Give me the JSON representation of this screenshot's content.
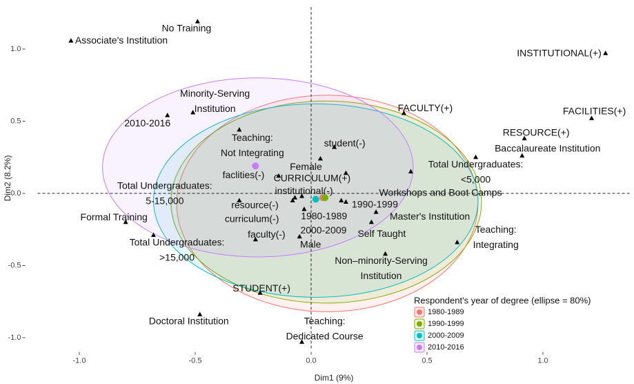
{
  "chart_data": {
    "type": "scatter",
    "xlabel": "Dim1 (9%)",
    "ylabel": "Dim2 (8.2%)",
    "xlim": [
      -1.18,
      1.38
    ],
    "ylim": [
      -1.08,
      1.29
    ],
    "xticks": [
      {
        "value": -1,
        "label": "-1.0"
      },
      {
        "value": -0.5,
        "label": "-0.5"
      },
      {
        "value": 0,
        "label": "0.0"
      },
      {
        "value": 0.5,
        "label": "0.5"
      },
      {
        "value": 1,
        "label": "1.0"
      }
    ],
    "yticks": [
      {
        "value": -1,
        "label": "-1.0"
      },
      {
        "value": -0.5,
        "label": "-0.5"
      },
      {
        "value": 0,
        "label": "0.0"
      },
      {
        "value": 0.5,
        "label": "0.5"
      },
      {
        "value": 1,
        "label": "1.0"
      }
    ],
    "legend_title": "Respondent's year of degree (ellipse = 80%)",
    "series": [
      {
        "name": "1980-1989",
        "color": "#f8766d",
        "x": [
          0.05
        ],
        "values": [
          -0.03
        ],
        "ellipse": {
          "cx": 0.07,
          "cy": -0.07,
          "rx": 0.65,
          "ry": 0.75
        }
      },
      {
        "name": "1990-1999",
        "color": "#7cae00",
        "x": [
          0.06
        ],
        "values": [
          -0.03
        ],
        "ellipse": {
          "cx": 0.065,
          "cy": -0.06,
          "rx": 0.67,
          "ry": 0.7
        }
      },
      {
        "name": "2000-2009",
        "color": "#00bfc4",
        "x": [
          0.02
        ],
        "values": [
          -0.04
        ],
        "ellipse": {
          "cx": 0.02,
          "cy": -0.05,
          "rx": 0.7,
          "ry": 0.67
        }
      },
      {
        "name": "2010-2016",
        "color": "#c77cff",
        "x": [
          -0.24
        ],
        "values": [
          0.19
        ],
        "ellipse": {
          "cx": -0.23,
          "cy": 0.18,
          "rx": 0.67,
          "ry": 0.62
        }
      }
    ],
    "points": [
      {
        "label": [
          "Associate's Institution"
        ],
        "x": -1.036,
        "y": 1.057
      },
      {
        "label": [
          "No Training"
        ],
        "x": -0.49,
        "y": 1.19
      },
      {
        "label": [
          "INSTITUTIONAL(+)"
        ],
        "x": 1.27,
        "y": 0.97
      },
      {
        "label": [
          "FACILITIES(+)"
        ],
        "x": 1.21,
        "y": 0.52
      },
      {
        "label": [
          "RESOURCE(+)"
        ],
        "x": 0.92,
        "y": 0.38
      },
      {
        "label": [
          "Baccalaureate Institution"
        ],
        "x": 0.91,
        "y": 0.26
      },
      {
        "label": [
          "FACULTY(+)"
        ],
        "x": 0.4,
        "y": 0.555
      },
      {
        "label": [
          "Total Undergraduates:",
          "<5,000"
        ],
        "x": 0.71,
        "y": 0.25
      },
      {
        "label": [
          "Workshops and Boot Camps"
        ],
        "x": 0.43,
        "y": 0.15
      },
      {
        "label": [
          "Teaching:",
          "Integrating"
        ],
        "x": 0.63,
        "y": -0.34
      },
      {
        "label": [
          "Master's Institution"
        ],
        "x": 0.28,
        "y": -0.13
      },
      {
        "label": [
          "Non–minority-Serving",
          "Institution"
        ],
        "x": 0.32,
        "y": -0.42
      },
      {
        "label": [
          "Self Taught"
        ],
        "x": 0.26,
        "y": -0.2
      },
      {
        "label": [
          "1990-1999"
        ],
        "x": 0.15,
        "y": -0.06
      },
      {
        "label": [
          "1980-1989"
        ],
        "x": 0.13,
        "y": -0.05
      },
      {
        "label": [
          "2000-2009"
        ],
        "x": -0.03,
        "y": -0.11
      },
      {
        "label": [
          "Male"
        ],
        "x": -0.05,
        "y": -0.3
      },
      {
        "label": [
          "student(-)"
        ],
        "x": 0.1,
        "y": 0.32
      },
      {
        "label": [
          "Female"
        ],
        "x": 0.04,
        "y": 0.24
      },
      {
        "label": [
          "CURRICULUM(+)"
        ],
        "x": 0.15,
        "y": 0.14
      },
      {
        "label": [
          "institutional(-)"
        ],
        "x": -0.04,
        "y": -0.02
      },
      {
        "label": [
          "resource(-)"
        ],
        "x": -0.07,
        "y": -0.03
      },
      {
        "label": [
          "curriculum(-)"
        ],
        "x": -0.08,
        "y": -0.05
      },
      {
        "label": [
          "faclities(-)"
        ],
        "x": -0.14,
        "y": 0.12
      },
      {
        "label": [
          "faculty(-)"
        ],
        "x": -0.24,
        "y": -0.32
      },
      {
        "label": [
          "Teaching:",
          "Not Integrating"
        ],
        "x": -0.31,
        "y": 0.44
      },
      {
        "label": [
          "Minority-Serving",
          "Institution"
        ],
        "x": -0.51,
        "y": 0.56
      },
      {
        "label": [
          "2010-2016"
        ],
        "x": -0.62,
        "y": 0.54
      },
      {
        "label": [
          "Total Undergraduates:",
          "5-15,000"
        ],
        "x": -0.31,
        "y": -0.05
      },
      {
        "label": [
          "Formal Training"
        ],
        "x": -0.8,
        "y": -0.2
      },
      {
        "label": [
          "Total Undergraduates:",
          ">15,000"
        ],
        "x": -0.68,
        "y": -0.29
      },
      {
        "label": [
          "STUDENT(+)"
        ],
        "x": -0.22,
        "y": -0.69
      },
      {
        "label": [
          "Doctoral Institution"
        ],
        "x": -0.48,
        "y": -0.84
      },
      {
        "label": [
          "Teaching:",
          "Dedicated Course"
        ],
        "x": -0.04,
        "y": -1.03
      }
    ]
  }
}
